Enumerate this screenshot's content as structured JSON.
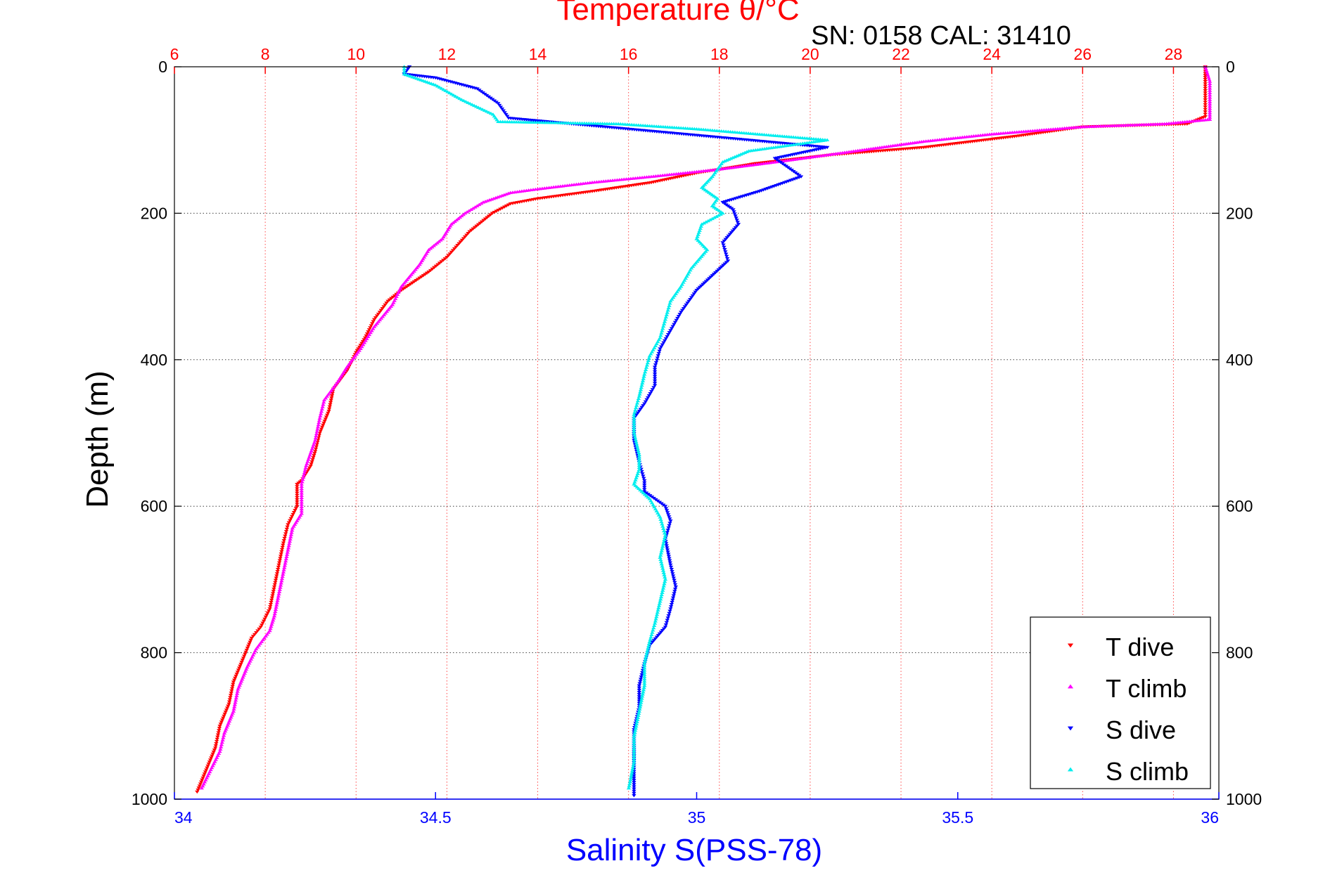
{
  "chart_data": {
    "type": "scatter",
    "title": "Temperature θ/°C",
    "subtitle": "SN: 0158  CAL: 31410",
    "ylabel": "Depth (m)",
    "xlabel_bottom": "Salinity S(PSS-78)",
    "ylim": [
      0,
      1000
    ],
    "y_reversed": true,
    "salinity_axis": {
      "range": [
        34,
        36
      ],
      "ticks": [
        "34",
        "34.5",
        "35",
        "35.5",
        "36"
      ],
      "tick_values": [
        34,
        34.5,
        35,
        35.5,
        36
      ],
      "color": "#0000ff"
    },
    "temperature_axis": {
      "range": [
        6,
        29
      ],
      "ticks": [
        "6",
        "8",
        "10",
        "12",
        "14",
        "16",
        "18",
        "20",
        "22",
        "24",
        "26",
        "28"
      ],
      "tick_values": [
        6,
        8,
        10,
        12,
        14,
        16,
        18,
        20,
        22,
        24,
        26,
        28
      ],
      "color": "#ff0000"
    },
    "depth_ticks": [
      "0",
      "200",
      "400",
      "600",
      "800",
      "1000"
    ],
    "depth_tick_values": [
      0,
      200,
      400,
      600,
      800,
      1000
    ],
    "grid": true,
    "legend_position": "bottom-right",
    "series": [
      {
        "name": "T dive",
        "axis": "temperature",
        "color": "#ff0000",
        "marker": "triangle-down",
        "points": [
          [
            28.7,
            0
          ],
          [
            28.7,
            20
          ],
          [
            28.7,
            45
          ],
          [
            28.7,
            68
          ],
          [
            28.3,
            78
          ],
          [
            26.0,
            82
          ],
          [
            24.5,
            95
          ],
          [
            22.5,
            110
          ],
          [
            20.5,
            120
          ],
          [
            18.8,
            132
          ],
          [
            17.5,
            145
          ],
          [
            16.5,
            158
          ],
          [
            15.2,
            170
          ],
          [
            14.0,
            180
          ],
          [
            13.4,
            187
          ],
          [
            13.0,
            200
          ],
          [
            12.5,
            225
          ],
          [
            12.0,
            260
          ],
          [
            11.6,
            280
          ],
          [
            11.0,
            305
          ],
          [
            10.7,
            320
          ],
          [
            10.4,
            345
          ],
          [
            10.2,
            370
          ],
          [
            10.0,
            390
          ],
          [
            9.8,
            415
          ],
          [
            9.5,
            440
          ],
          [
            9.4,
            470
          ],
          [
            9.2,
            500
          ],
          [
            9.1,
            525
          ],
          [
            9.0,
            545
          ],
          [
            8.8,
            565
          ],
          [
            8.7,
            570
          ],
          [
            8.7,
            600
          ],
          [
            8.5,
            625
          ],
          [
            8.4,
            650
          ],
          [
            8.3,
            680
          ],
          [
            8.2,
            710
          ],
          [
            8.1,
            740
          ],
          [
            7.9,
            765
          ],
          [
            7.7,
            780
          ],
          [
            7.5,
            810
          ],
          [
            7.3,
            840
          ],
          [
            7.2,
            870
          ],
          [
            7.0,
            900
          ],
          [
            6.9,
            930
          ],
          [
            6.7,
            960
          ],
          [
            6.5,
            990
          ]
        ]
      },
      {
        "name": "T climb",
        "axis": "temperature",
        "color": "#ff00ff",
        "marker": "triangle-up",
        "points": [
          [
            28.7,
            0
          ],
          [
            28.8,
            20
          ],
          [
            28.8,
            45
          ],
          [
            28.8,
            72
          ],
          [
            27.8,
            78
          ],
          [
            26.0,
            82
          ],
          [
            24.0,
            92
          ],
          [
            22.5,
            102
          ],
          [
            21.0,
            115
          ],
          [
            19.5,
            128
          ],
          [
            18.0,
            140
          ],
          [
            16.5,
            150
          ],
          [
            15.2,
            158
          ],
          [
            14.0,
            167
          ],
          [
            13.4,
            172
          ],
          [
            12.8,
            185
          ],
          [
            12.4,
            200
          ],
          [
            12.1,
            215
          ],
          [
            11.9,
            235
          ],
          [
            11.6,
            250
          ],
          [
            11.4,
            270
          ],
          [
            11.0,
            300
          ],
          [
            10.8,
            325
          ],
          [
            10.4,
            355
          ],
          [
            10.1,
            385
          ],
          [
            9.8,
            410
          ],
          [
            9.6,
            430
          ],
          [
            9.3,
            455
          ],
          [
            9.2,
            480
          ],
          [
            9.1,
            510
          ],
          [
            8.9,
            545
          ],
          [
            8.8,
            570
          ],
          [
            8.8,
            610
          ],
          [
            8.6,
            630
          ],
          [
            8.5,
            660
          ],
          [
            8.4,
            690
          ],
          [
            8.3,
            720
          ],
          [
            8.2,
            750
          ],
          [
            8.1,
            770
          ],
          [
            7.8,
            795
          ],
          [
            7.6,
            820
          ],
          [
            7.4,
            850
          ],
          [
            7.3,
            880
          ],
          [
            7.1,
            910
          ],
          [
            7.0,
            935
          ],
          [
            6.8,
            960
          ],
          [
            6.6,
            985
          ]
        ]
      },
      {
        "name": "S dive",
        "axis": "salinity",
        "color": "#0000ff",
        "marker": "triangle-down",
        "points": [
          [
            34.45,
            0
          ],
          [
            34.44,
            10
          ],
          [
            34.5,
            15
          ],
          [
            34.58,
            30
          ],
          [
            34.62,
            50
          ],
          [
            34.64,
            70
          ],
          [
            35.1,
            100
          ],
          [
            35.25,
            110
          ],
          [
            35.15,
            125
          ],
          [
            35.2,
            150
          ],
          [
            35.12,
            170
          ],
          [
            35.05,
            185
          ],
          [
            35.07,
            195
          ],
          [
            35.08,
            215
          ],
          [
            35.05,
            240
          ],
          [
            35.06,
            265
          ],
          [
            35.03,
            285
          ],
          [
            35.0,
            305
          ],
          [
            34.97,
            335
          ],
          [
            34.95,
            360
          ],
          [
            34.93,
            385
          ],
          [
            34.92,
            410
          ],
          [
            34.92,
            435
          ],
          [
            34.9,
            460
          ],
          [
            34.88,
            480
          ],
          [
            34.88,
            510
          ],
          [
            34.89,
            540
          ],
          [
            34.9,
            565
          ],
          [
            34.9,
            580
          ],
          [
            34.94,
            600
          ],
          [
            34.95,
            620
          ],
          [
            34.94,
            645
          ],
          [
            34.95,
            680
          ],
          [
            34.96,
            710
          ],
          [
            34.95,
            740
          ],
          [
            34.94,
            765
          ],
          [
            34.91,
            790
          ],
          [
            34.9,
            815
          ],
          [
            34.89,
            845
          ],
          [
            34.89,
            875
          ],
          [
            34.88,
            905
          ],
          [
            34.88,
            935
          ],
          [
            34.88,
            965
          ],
          [
            34.88,
            995
          ]
        ]
      },
      {
        "name": "S climb",
        "axis": "salinity",
        "color": "#00eeee",
        "marker": "triangle-up",
        "points": [
          [
            34.44,
            0
          ],
          [
            34.44,
            10
          ],
          [
            34.5,
            25
          ],
          [
            34.55,
            45
          ],
          [
            34.61,
            65
          ],
          [
            34.62,
            75
          ],
          [
            34.85,
            78
          ],
          [
            35.0,
            85
          ],
          [
            35.25,
            100
          ],
          [
            35.1,
            115
          ],
          [
            35.05,
            130
          ],
          [
            35.03,
            150
          ],
          [
            35.01,
            165
          ],
          [
            35.04,
            180
          ],
          [
            35.03,
            190
          ],
          [
            35.05,
            200
          ],
          [
            35.01,
            215
          ],
          [
            35.0,
            235
          ],
          [
            35.02,
            250
          ],
          [
            34.99,
            275
          ],
          [
            34.97,
            300
          ],
          [
            34.95,
            320
          ],
          [
            34.94,
            345
          ],
          [
            34.93,
            370
          ],
          [
            34.91,
            395
          ],
          [
            34.9,
            420
          ],
          [
            34.89,
            450
          ],
          [
            34.88,
            475
          ],
          [
            34.88,
            500
          ],
          [
            34.89,
            530
          ],
          [
            34.89,
            550
          ],
          [
            34.88,
            570
          ],
          [
            34.91,
            590
          ],
          [
            34.93,
            615
          ],
          [
            34.94,
            640
          ],
          [
            34.93,
            670
          ],
          [
            34.94,
            700
          ],
          [
            34.93,
            730
          ],
          [
            34.92,
            760
          ],
          [
            34.91,
            785
          ],
          [
            34.9,
            815
          ],
          [
            34.9,
            845
          ],
          [
            34.89,
            880
          ],
          [
            34.88,
            915
          ],
          [
            34.88,
            950
          ],
          [
            34.87,
            985
          ]
        ]
      }
    ]
  }
}
